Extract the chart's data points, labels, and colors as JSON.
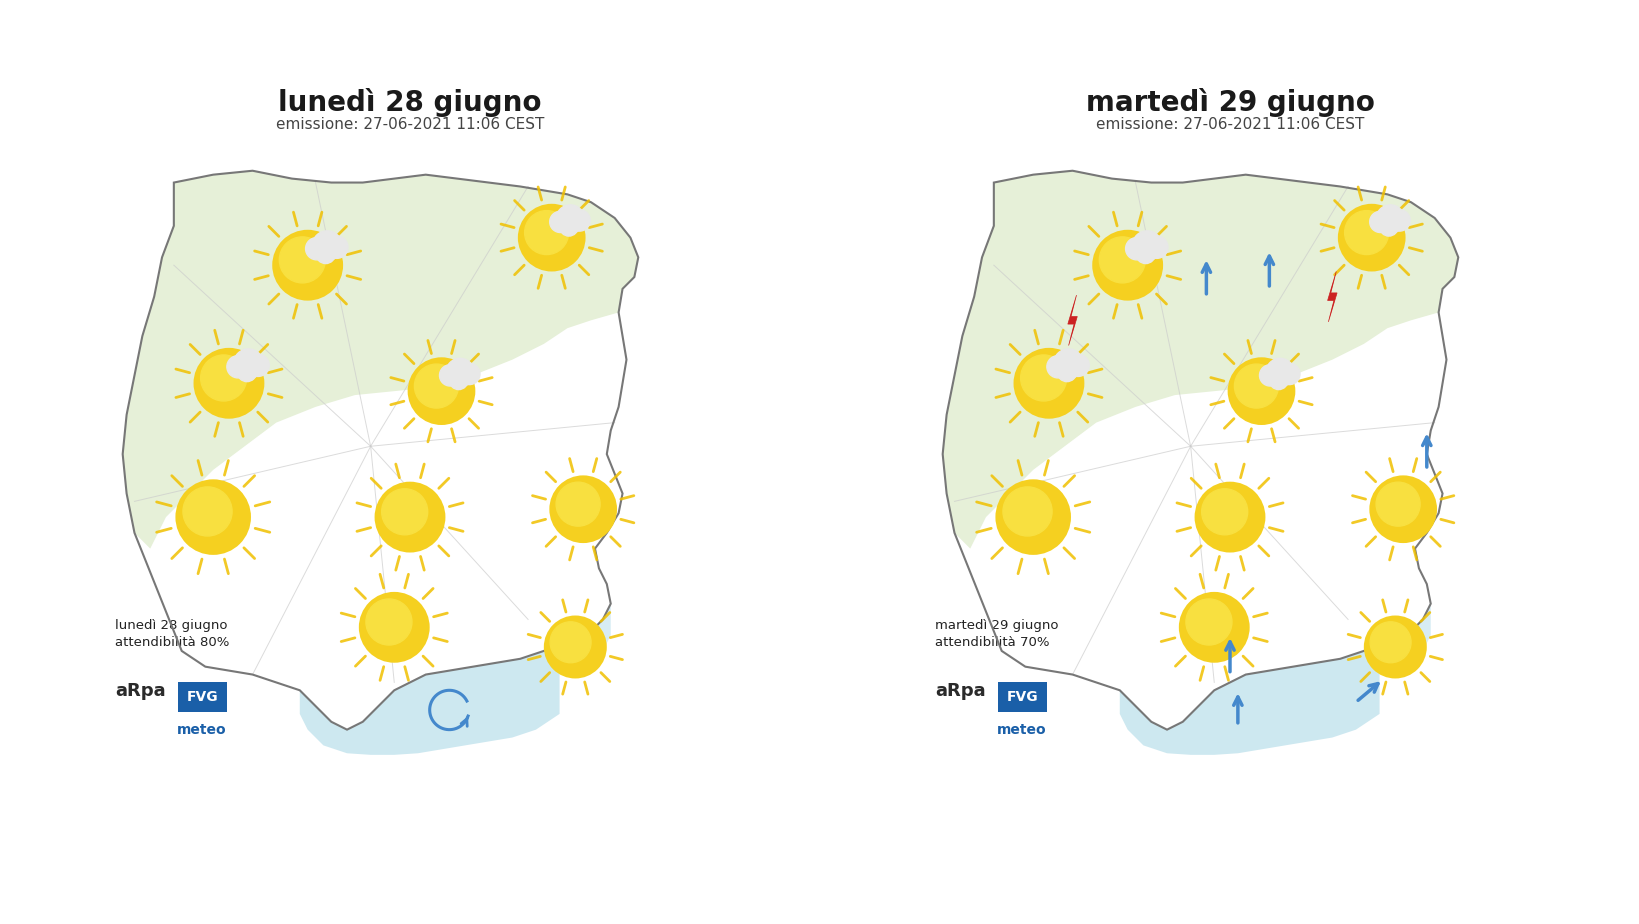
{
  "bg_color": "#ffffff",
  "title1": "lunedì 28 giugno",
  "title2": "martedì 29 giugno",
  "subtitle": "emissione: 27-06-2021 11:06 CEST",
  "label1": "lunedì 28 giugno\nattendibilità 80%",
  "label2": "martedì 29 giugno\nattendibilità 70%",
  "mountain_color": "#e6f0d8",
  "sea_color": "#cde8f0",
  "region_border": "#777777",
  "province_border": "#cccccc",
  "sun_color": "#f5d020",
  "sun_outer": "#f5c800",
  "cloud_color": "#e8e8e8",
  "lightning_color": "#cc2222",
  "arrow_color": "#4488cc",
  "arpa_text": "#333333",
  "arpa_box": "#1a5fa8",
  "title_color": "#1a1a1a",
  "sub_color": "#444444"
}
